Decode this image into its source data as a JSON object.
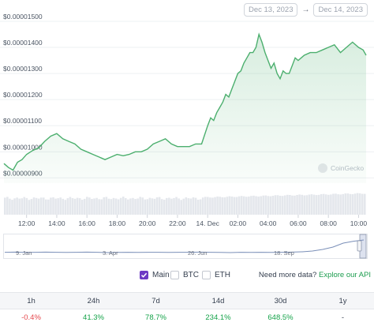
{
  "date_range": {
    "from": "Dec 13, 2023",
    "to": "Dec 14, 2023",
    "arrow": "→"
  },
  "watermark": "CoinGecko",
  "chart_data": {
    "type": "line",
    "title": "",
    "ylim": [
      8.8e-06,
      1.515e-05
    ],
    "y_ticks": [
      {
        "value": 9e-06,
        "label": "$0.00000900"
      },
      {
        "value": 1e-05,
        "label": "$0.00001000"
      },
      {
        "value": 1.1e-05,
        "label": "$0.00001100"
      },
      {
        "value": 1.2e-05,
        "label": "$0.00001200"
      },
      {
        "value": 1.3e-05,
        "label": "$0.00001300"
      },
      {
        "value": 1.4e-05,
        "label": "$0.00001400"
      },
      {
        "value": 1.5e-05,
        "label": "$0.00001500"
      }
    ],
    "x_ticks": [
      "12:00",
      "14:00",
      "16:00",
      "18:00",
      "20:00",
      "22:00",
      "14. Dec",
      "02:00",
      "04:00",
      "06:00",
      "08:00",
      "10:00"
    ],
    "x_range_hours": [
      10.5,
      34.5
    ],
    "series": [
      {
        "x": [
          10.5,
          10.8,
          11.1,
          11.4,
          11.7,
          12.0,
          12.4,
          12.8,
          13.2,
          13.6,
          14.0,
          14.4,
          14.8,
          15.2,
          15.6,
          16.0,
          16.4,
          16.8,
          17.2,
          17.6,
          18.0,
          18.4,
          18.8,
          19.2,
          19.6,
          20.0,
          20.4,
          20.8,
          21.2,
          21.6,
          22.0,
          22.4,
          22.8,
          23.2,
          23.6,
          24.0,
          24.2,
          24.4,
          24.6,
          24.8,
          25.0,
          25.2,
          25.4,
          25.6,
          25.8,
          26.0,
          26.2,
          26.4,
          26.6,
          26.8,
          27.0,
          27.2,
          27.4,
          27.6,
          27.8,
          28.0,
          28.2,
          28.4,
          28.6,
          28.8,
          29.0,
          29.2,
          29.4,
          29.6,
          29.8,
          30.0,
          30.4,
          30.8,
          31.2,
          31.6,
          32.0,
          32.4,
          32.8,
          33.2,
          33.6,
          34.0,
          34.3,
          34.5
        ],
        "values": [
          9.55e-06,
          9.4e-06,
          9.3e-06,
          9.6e-06,
          9.7e-06,
          9.9e-06,
          1.005e-05,
          1.015e-05,
          1.04e-05,
          1.06e-05,
          1.07e-05,
          1.05e-05,
          1.04e-05,
          1.03e-05,
          1.01e-05,
          1e-05,
          9.9e-06,
          9.8e-06,
          9.7e-06,
          9.8e-06,
          9.9e-06,
          9.85e-06,
          9.9e-06,
          1e-05,
          1e-05,
          1.01e-05,
          1.03e-05,
          1.04e-05,
          1.05e-05,
          1.03e-05,
          1.02e-05,
          1.02e-05,
          1.02e-05,
          1.03e-05,
          1.03e-05,
          1.1e-05,
          1.13e-05,
          1.12e-05,
          1.15e-05,
          1.17e-05,
          1.19e-05,
          1.22e-05,
          1.21e-05,
          1.24e-05,
          1.27e-05,
          1.3e-05,
          1.31e-05,
          1.34e-05,
          1.36e-05,
          1.38e-05,
          1.38e-05,
          1.4e-05,
          1.45e-05,
          1.42e-05,
          1.38e-05,
          1.35e-05,
          1.32e-05,
          1.34e-05,
          1.3e-05,
          1.28e-05,
          1.31e-05,
          1.3e-05,
          1.3e-05,
          1.33e-05,
          1.36e-05,
          1.35e-05,
          1.37e-05,
          1.38e-05,
          1.38e-05,
          1.39e-05,
          1.4e-05,
          1.41e-05,
          1.38e-05,
          1.4e-05,
          1.42e-05,
          1.4e-05,
          1.39e-05,
          1.37e-05
        ]
      }
    ],
    "volume_bars": 150,
    "line_color": "#4caf6e"
  },
  "overview": {
    "labels": [
      "9. Jan",
      "3. Apr",
      "26. Jun",
      "18. Sep"
    ],
    "values": [
      0.12,
      0.13,
      0.11,
      0.12,
      0.13,
      0.12,
      0.11,
      0.12,
      0.13,
      0.12,
      0.1,
      0.11,
      0.12,
      0.11,
      0.12,
      0.12,
      0.11,
      0.12,
      0.12,
      0.13,
      0.12,
      0.11,
      0.1,
      0.12,
      0.11,
      0.12,
      0.11,
      0.12,
      0.13,
      0.15,
      0.2,
      0.3,
      0.45,
      0.7,
      0.82,
      0.9
    ]
  },
  "controls": {
    "main_label": "Main",
    "btc_label": "BTC",
    "eth_label": "ETH",
    "more_data_text": "Need more data?",
    "explore_api": "Explore our API"
  },
  "change_table": {
    "headers": [
      "1h",
      "24h",
      "7d",
      "14d",
      "30d",
      "1y"
    ],
    "values": [
      "-0.4%",
      "41.3%",
      "78.7%",
      "234.1%",
      "648.5%",
      "-"
    ],
    "status": [
      "neg",
      "pos",
      "pos",
      "pos",
      "pos",
      "neu"
    ]
  },
  "colors": {
    "accent": "#6d3ac4",
    "positive": "#16a34a",
    "negative": "#e5484d",
    "link": "#1d9d4f"
  }
}
